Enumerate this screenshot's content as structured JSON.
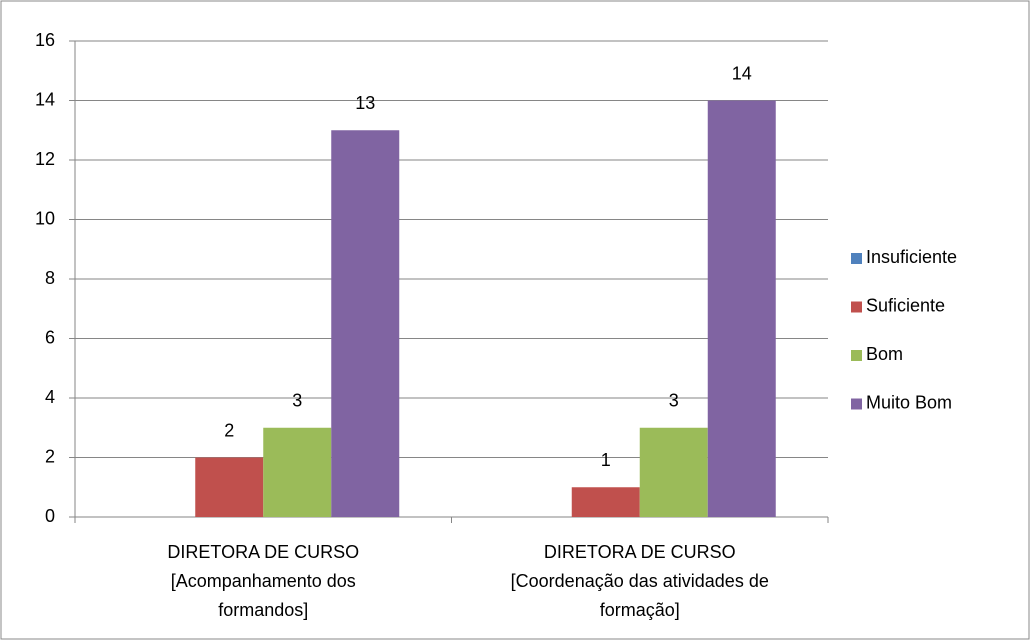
{
  "chart_data": {
    "type": "bar",
    "categories": [
      [
        "DIRETORA DE CURSO",
        "[Acompanhamento dos",
        "formandos]"
      ],
      [
        "DIRETORA DE CURSO",
        "[Coordenação das atividades de",
        "formação]"
      ]
    ],
    "series": [
      {
        "name": "Insuficiente",
        "color": "#4f81bd",
        "values": [
          0,
          0
        ]
      },
      {
        "name": "Suficiente",
        "color": "#c0504d",
        "values": [
          2,
          1
        ]
      },
      {
        "name": "Bom",
        "color": "#9bbb59",
        "values": [
          3,
          3
        ]
      },
      {
        "name": "Muito Bom",
        "color": "#8064a2",
        "values": [
          13,
          14
        ]
      }
    ],
    "ylim": [
      0,
      16
    ],
    "yticks": [
      0,
      2,
      4,
      6,
      8,
      10,
      12,
      14,
      16
    ],
    "grid": true,
    "legend": "right"
  }
}
